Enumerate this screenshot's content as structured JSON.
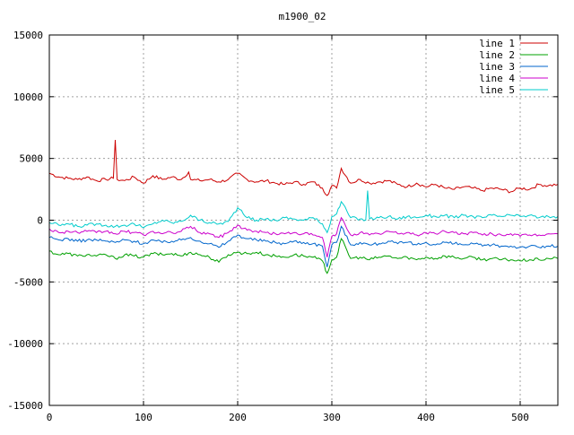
{
  "chart_data": {
    "type": "line",
    "title": "m1900_02",
    "xlabel": "",
    "ylabel": "",
    "xlim": [
      0,
      540
    ],
    "ylim": [
      -15000,
      15000
    ],
    "x_ticks": [
      0,
      100,
      200,
      300,
      400,
      500
    ],
    "y_ticks": [
      -15000,
      -10000,
      -5000,
      0,
      5000,
      10000,
      15000
    ],
    "grid": true,
    "legend_position": "top-right",
    "series": [
      {
        "name": "line 1",
        "color": "#cc0000",
        "x": [
          0,
          10,
          20,
          30,
          40,
          50,
          60,
          68,
          70,
          72,
          80,
          90,
          100,
          110,
          120,
          130,
          140,
          148,
          150,
          160,
          170,
          180,
          190,
          200,
          210,
          220,
          230,
          240,
          250,
          260,
          270,
          280,
          290,
          295,
          300,
          305,
          310,
          320,
          330,
          340,
          350,
          360,
          370,
          380,
          390,
          400,
          410,
          420,
          430,
          440,
          450,
          460,
          470,
          480,
          490,
          500,
          510,
          520,
          530,
          540
        ],
        "y": [
          3800,
          3500,
          3400,
          3300,
          3500,
          3200,
          3300,
          3400,
          6500,
          3300,
          3200,
          3500,
          3000,
          3600,
          3300,
          3500,
          3300,
          3900,
          3300,
          3200,
          3300,
          3100,
          3300,
          3800,
          3300,
          3100,
          3200,
          3000,
          2900,
          3100,
          2900,
          3100,
          2600,
          2000,
          2800,
          2600,
          4200,
          3000,
          3300,
          3000,
          3100,
          3200,
          2900,
          2700,
          3000,
          2700,
          2900,
          2600,
          2500,
          2700,
          2600,
          2400,
          2600,
          2500,
          2300,
          2600,
          2500,
          2900,
          2800,
          2900
        ]
      },
      {
        "name": "line 2",
        "color": "#00a000",
        "x": [
          0,
          10,
          20,
          30,
          40,
          50,
          60,
          70,
          80,
          90,
          100,
          110,
          120,
          130,
          140,
          150,
          160,
          170,
          180,
          190,
          200,
          210,
          220,
          230,
          240,
          250,
          260,
          270,
          280,
          290,
          295,
          300,
          305,
          310,
          320,
          330,
          340,
          350,
          360,
          370,
          380,
          390,
          400,
          410,
          420,
          430,
          440,
          450,
          460,
          470,
          480,
          490,
          500,
          510,
          520,
          530,
          540
        ],
        "y": [
          -2500,
          -2800,
          -2700,
          -2900,
          -2800,
          -2900,
          -2800,
          -3100,
          -2800,
          -2900,
          -3000,
          -2700,
          -2800,
          -2700,
          -2900,
          -2600,
          -2800,
          -3000,
          -3400,
          -2800,
          -2600,
          -2700,
          -2600,
          -2800,
          -2900,
          -3000,
          -2800,
          -2900,
          -3000,
          -3300,
          -4300,
          -3200,
          -3000,
          -1500,
          -3100,
          -3000,
          -3200,
          -3000,
          -2900,
          -3100,
          -3000,
          -3200,
          -3000,
          -3100,
          -2900,
          -3000,
          -3100,
          -3000,
          -3200,
          -3100,
          -3200,
          -3200,
          -3300,
          -3200,
          -3200,
          -3100,
          -3100
        ]
      },
      {
        "name": "line 3",
        "color": "#0066cc",
        "x": [
          0,
          10,
          20,
          30,
          40,
          50,
          60,
          70,
          80,
          90,
          100,
          110,
          120,
          130,
          140,
          150,
          160,
          170,
          180,
          190,
          200,
          210,
          220,
          230,
          240,
          250,
          260,
          270,
          280,
          290,
          295,
          300,
          305,
          310,
          320,
          330,
          340,
          350,
          360,
          370,
          380,
          390,
          400,
          410,
          420,
          430,
          440,
          450,
          460,
          470,
          480,
          490,
          500,
          510,
          520,
          530,
          540
        ],
        "y": [
          -1400,
          -1600,
          -1500,
          -1700,
          -1600,
          -1600,
          -1700,
          -1800,
          -1600,
          -1700,
          -1900,
          -1600,
          -1800,
          -1700,
          -1600,
          -1400,
          -1700,
          -1900,
          -2200,
          -1700,
          -1200,
          -1500,
          -1600,
          -1700,
          -1800,
          -1900,
          -1700,
          -1800,
          -1900,
          -2100,
          -3800,
          -2000,
          -1800,
          -500,
          -2000,
          -1800,
          -2000,
          -1900,
          -1700,
          -1900,
          -1800,
          -2000,
          -1800,
          -2000,
          -1800,
          -1900,
          -2000,
          -1900,
          -2100,
          -2000,
          -2100,
          -2100,
          -2200,
          -2100,
          -2200,
          -2100,
          -2100
        ]
      },
      {
        "name": "line 4",
        "color": "#cc00cc",
        "x": [
          0,
          10,
          20,
          30,
          40,
          50,
          60,
          70,
          80,
          90,
          100,
          110,
          120,
          130,
          140,
          150,
          160,
          170,
          180,
          190,
          200,
          210,
          220,
          230,
          240,
          250,
          260,
          270,
          280,
          290,
          295,
          300,
          305,
          310,
          320,
          330,
          340,
          350,
          360,
          370,
          380,
          390,
          400,
          410,
          420,
          430,
          440,
          450,
          460,
          470,
          480,
          490,
          500,
          510,
          520,
          530,
          540
        ],
        "y": [
          -700,
          -1000,
          -900,
          -1000,
          -900,
          -1000,
          -900,
          -1100,
          -900,
          -1000,
          -1200,
          -900,
          -1100,
          -1000,
          -900,
          -500,
          -1000,
          -1100,
          -1400,
          -1000,
          -400,
          -800,
          -900,
          -1000,
          -1100,
          -1100,
          -1000,
          -1100,
          -1200,
          -1400,
          -3000,
          -1300,
          -1100,
          200,
          -1200,
          -1000,
          -1200,
          -1100,
          -900,
          -1100,
          -1000,
          -1200,
          -1000,
          -1100,
          -900,
          -1000,
          -1100,
          -1000,
          -1200,
          -1100,
          -1200,
          -1100,
          -1300,
          -1200,
          -1200,
          -1100,
          -1100
        ]
      },
      {
        "name": "line 5",
        "color": "#00cccc",
        "x": [
          0,
          10,
          20,
          30,
          40,
          50,
          60,
          70,
          80,
          90,
          100,
          110,
          120,
          130,
          140,
          150,
          160,
          170,
          180,
          190,
          200,
          210,
          220,
          230,
          240,
          250,
          260,
          270,
          280,
          290,
          295,
          300,
          305,
          310,
          320,
          330,
          336,
          338,
          340,
          350,
          360,
          370,
          380,
          390,
          400,
          410,
          420,
          430,
          440,
          450,
          460,
          470,
          480,
          490,
          500,
          510,
          520,
          530,
          540
        ],
        "y": [
          -200,
          -400,
          -300,
          -500,
          -400,
          -300,
          -400,
          -500,
          -400,
          -300,
          -600,
          -300,
          0,
          -200,
          -100,
          400,
          0,
          -200,
          -300,
          -100,
          1000,
          200,
          0,
          100,
          0,
          200,
          100,
          0,
          200,
          -300,
          -1000,
          300,
          500,
          1500,
          200,
          100,
          0,
          2400,
          100,
          200,
          300,
          100,
          300,
          200,
          400,
          300,
          400,
          200,
          400,
          300,
          200,
          400,
          300,
          400,
          300,
          400,
          200,
          300,
          300
        ]
      }
    ]
  }
}
